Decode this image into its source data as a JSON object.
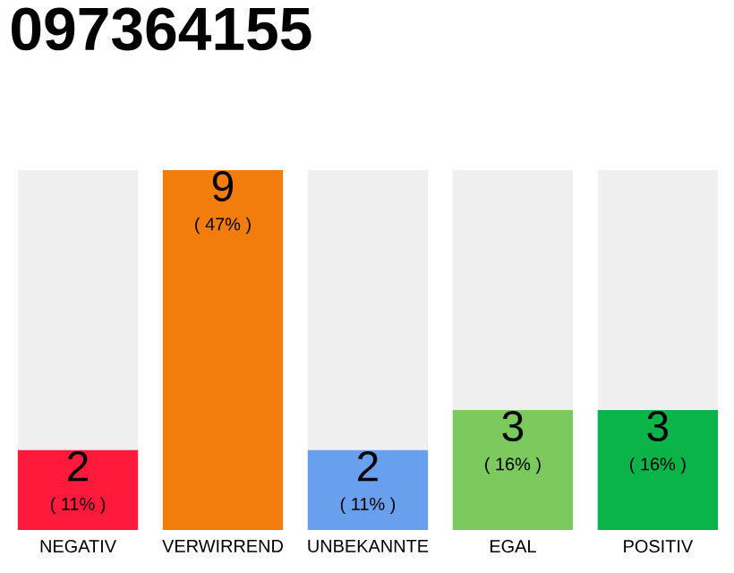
{
  "chart_data": {
    "type": "bar",
    "title": "097364155",
    "categories": [
      "NEGATIV",
      "VERWIRREND",
      "UNBEKANNTE",
      "EGAL",
      "POSITIV"
    ],
    "values": [
      2,
      9,
      2,
      3,
      3
    ],
    "colors": [
      "#ff1a3c",
      "#f27d0c",
      "#68a0ed",
      "#7cc95e",
      "#0bb449"
    ],
    "ylim": [
      0,
      9
    ],
    "tick_labels": "x",
    "data_labels": true,
    "annotations": [
      {
        "text": "( 11% )",
        "x": "NEGATIV",
        "y": 2
      },
      {
        "text": "( 47% )",
        "x": "VERWIRREND",
        "y": 9
      },
      {
        "text": "( 11% )",
        "x": "UNBEKANNTE",
        "y": 2
      },
      {
        "text": "( 16% )",
        "x": "EGAL",
        "y": 3
      },
      {
        "text": "( 16% )",
        "x": "POSITIV",
        "y": 3
      }
    ]
  }
}
